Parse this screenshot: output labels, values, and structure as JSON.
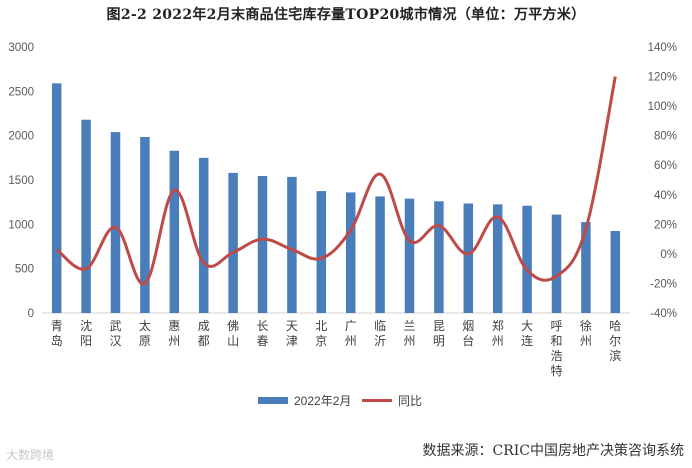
{
  "title": "图2-2 2022年2月末商品住宅库存量TOP20城市情况（单位：万平方米）",
  "source": "数据来源：CRIC中国房地产决策咨询系统",
  "watermark": "大数跨境",
  "chart_data": {
    "type": "bar",
    "categories": [
      "青岛",
      "沈阳",
      "武汉",
      "太原",
      "惠州",
      "成都",
      "佛山",
      "长春",
      "天津",
      "北京",
      "广州",
      "临沂",
      "兰州",
      "昆明",
      "烟台",
      "郑州",
      "大连",
      "呼和浩特",
      "徐州",
      "哈尔滨"
    ],
    "series": [
      {
        "name": "2022年2月",
        "type": "bar",
        "axis": "left",
        "color": "#4a7ebb",
        "values": [
          2590,
          2180,
          2040,
          1985,
          1830,
          1750,
          1580,
          1545,
          1535,
          1375,
          1360,
          1315,
          1290,
          1260,
          1235,
          1225,
          1210,
          1110,
          1025,
          925
        ]
      },
      {
        "name": "同比",
        "type": "line",
        "axis": "right",
        "color": "#be4b48",
        "values": [
          3,
          -10,
          18,
          -20,
          43,
          -6,
          1,
          10,
          3,
          -3,
          16,
          54,
          9,
          19,
          0,
          25,
          -11,
          -15,
          17,
          120
        ]
      }
    ],
    "y_left": {
      "min": 0,
      "max": 3000,
      "ticks": [
        "0",
        "500",
        "1000",
        "1500",
        "2000",
        "2500",
        "3000"
      ]
    },
    "y_right": {
      "min": -40,
      "max": 140,
      "ticks": [
        "-40%",
        "-20%",
        "0%",
        "20%",
        "40%",
        "60%",
        "80%",
        "100%",
        "120%",
        "140%"
      ]
    },
    "legend_position": "bottom",
    "grid": false
  }
}
